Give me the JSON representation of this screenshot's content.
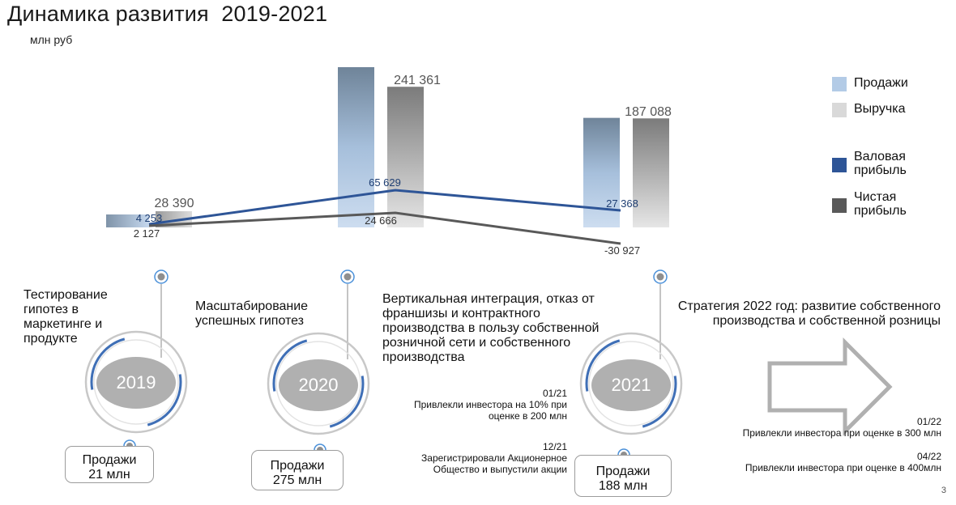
{
  "title": "Динамика развития  2019-2021",
  "subtitle": "млн руб",
  "chart_data": {
    "type": "bar",
    "categories": [
      "2019",
      "2020",
      "2021"
    ],
    "series": [
      {
        "name": "Продажи",
        "kind": "bar",
        "color": "#b3cbe6",
        "values": [
          21000,
          275000,
          188000
        ]
      },
      {
        "name": "Выручка",
        "kind": "bar",
        "color": "#d9d9d9",
        "values": [
          28390,
          241361,
          187088
        ]
      },
      {
        "name": "Валовая прибыль",
        "kind": "line",
        "color": "#2e5597",
        "values": [
          4253,
          65629,
          27368
        ]
      },
      {
        "name": "Чистая прибыль",
        "kind": "line",
        "color": "#595959",
        "values": [
          2127,
          24666,
          -30927
        ]
      }
    ],
    "data_labels": {
      "Выручка": [
        "28 390",
        "241 361",
        "187 088"
      ],
      "Валовая прибыль": [
        "4 253",
        "65 629",
        "27 368"
      ],
      "Чистая прибыль": [
        "2 127",
        "24 666",
        "-30 927"
      ]
    },
    "legend_position": "right",
    "grid": false
  },
  "legend": [
    {
      "label": "Продажи",
      "color": "#b3cbe6"
    },
    {
      "label": "Выручка",
      "color": "#d9d9d9"
    },
    {
      "label": "Валовая прибыль",
      "color": "#2e5597"
    },
    {
      "label": "Чистая прибыль",
      "color": "#595959"
    }
  ],
  "timeline": {
    "phases": [
      {
        "year": "2019",
        "description": "Тестирование гипотез в маркетинге и продукте",
        "sales": "Продажи 21 млн"
      },
      {
        "year": "2020",
        "description": "Масштабирование успешных гипотез",
        "sales": "Продажи 275 млн"
      },
      {
        "year": "2021",
        "description": "Вертикальная интеграция, отказ от франшизы и контрактного производства в пользу собственной розничной сети и собственного производства",
        "sales": "Продажи 188 млн"
      }
    ],
    "events_2021": [
      {
        "date": "01/21",
        "text": "Привлекли инвестора на 10% при оценке в 200 млн"
      },
      {
        "date": "12/21",
        "text": "Зарегистрировали Акционерное Общество и выпустили акции"
      }
    ],
    "strategy": "Стратегия 2022 год: развитие собственного производства и собственной розницы",
    "events_2022": [
      {
        "date": "01/22",
        "text": "Привлекли инвестора при оценке в 300 млн"
      },
      {
        "date": "04/22",
        "text": "Привлекли инвестора при оценке в 400млн"
      }
    ]
  },
  "page_number": "3"
}
